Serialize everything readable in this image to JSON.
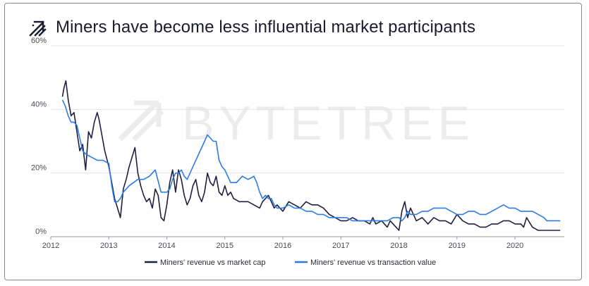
{
  "title": "Miners have become less influential market participants",
  "brand": {
    "icon": "bytetree-arrow-icon",
    "watermark": "BYTETREE"
  },
  "colors": {
    "series_dark": "#1f2040",
    "series_blue": "#2c7be5",
    "grid": "#e3e3e3",
    "text": "#1a1b2f"
  },
  "chart_data": {
    "type": "line",
    "title": "Miners have become less influential market participants",
    "xlabel": "",
    "ylabel": "",
    "xlim": [
      2012.0,
      2020.85
    ],
    "ylim": [
      0,
      60
    ],
    "x_ticks": [
      {
        "value": 2012,
        "label": "2012"
      },
      {
        "value": 2013,
        "label": "2013"
      },
      {
        "value": 2014,
        "label": "2014"
      },
      {
        "value": 2015,
        "label": "2015"
      },
      {
        "value": 2016,
        "label": "2016"
      },
      {
        "value": 2017,
        "label": "2017"
      },
      {
        "value": 2018,
        "label": "2018"
      },
      {
        "value": 2019,
        "label": "2019"
      },
      {
        "value": 2020,
        "label": "2020"
      }
    ],
    "y_ticks": [
      {
        "value": 0,
        "label": "0%"
      },
      {
        "value": 20,
        "label": "20%"
      },
      {
        "value": 40,
        "label": "40%"
      },
      {
        "value": 60,
        "label": "60%"
      }
    ],
    "grid": true,
    "legend_position": "bottom-center",
    "series": [
      {
        "name": "Miners' revenue vs market cap",
        "color": "#1f2040",
        "points": [
          [
            2012.2,
            44
          ],
          [
            2012.23,
            47
          ],
          [
            2012.26,
            49
          ],
          [
            2012.3,
            43
          ],
          [
            2012.35,
            38
          ],
          [
            2012.4,
            39
          ],
          [
            2012.45,
            33
          ],
          [
            2012.5,
            27
          ],
          [
            2012.55,
            29
          ],
          [
            2012.6,
            21
          ],
          [
            2012.65,
            33
          ],
          [
            2012.7,
            31
          ],
          [
            2012.75,
            36
          ],
          [
            2012.8,
            39
          ],
          [
            2012.83,
            37
          ],
          [
            2012.88,
            32
          ],
          [
            2012.93,
            27
          ],
          [
            2013.0,
            22
          ],
          [
            2013.05,
            17
          ],
          [
            2013.1,
            12
          ],
          [
            2013.15,
            9
          ],
          [
            2013.2,
            6
          ],
          [
            2013.25,
            15
          ],
          [
            2013.3,
            18
          ],
          [
            2013.35,
            22
          ],
          [
            2013.4,
            25
          ],
          [
            2013.45,
            28
          ],
          [
            2013.5,
            20
          ],
          [
            2013.55,
            16
          ],
          [
            2013.6,
            13
          ],
          [
            2013.65,
            11
          ],
          [
            2013.7,
            12
          ],
          [
            2013.75,
            9
          ],
          [
            2013.8,
            15
          ],
          [
            2013.85,
            13
          ],
          [
            2013.9,
            6
          ],
          [
            2013.95,
            5
          ],
          [
            2014.0,
            10
          ],
          [
            2014.05,
            17
          ],
          [
            2014.1,
            21
          ],
          [
            2014.15,
            14
          ],
          [
            2014.2,
            21
          ],
          [
            2014.25,
            18
          ],
          [
            2014.3,
            13
          ],
          [
            2014.35,
            10
          ],
          [
            2014.4,
            12
          ],
          [
            2014.45,
            16
          ],
          [
            2014.5,
            18
          ],
          [
            2014.55,
            13
          ],
          [
            2014.6,
            11
          ],
          [
            2014.65,
            14
          ],
          [
            2014.7,
            20
          ],
          [
            2014.75,
            17
          ],
          [
            2014.8,
            16
          ],
          [
            2014.85,
            19
          ],
          [
            2014.9,
            14
          ],
          [
            2014.95,
            13
          ],
          [
            2015.0,
            16
          ],
          [
            2015.05,
            13
          ],
          [
            2015.1,
            14
          ],
          [
            2015.15,
            12
          ],
          [
            2015.25,
            11
          ],
          [
            2015.4,
            11
          ],
          [
            2015.5,
            10
          ],
          [
            2015.6,
            9
          ],
          [
            2015.65,
            11
          ],
          [
            2015.7,
            12
          ],
          [
            2015.75,
            13
          ],
          [
            2015.8,
            11
          ],
          [
            2015.85,
            9
          ],
          [
            2015.9,
            10
          ],
          [
            2015.95,
            9
          ],
          [
            2016.0,
            8
          ],
          [
            2016.1,
            11
          ],
          [
            2016.2,
            10
          ],
          [
            2016.3,
            9
          ],
          [
            2016.4,
            11
          ],
          [
            2016.5,
            10
          ],
          [
            2016.6,
            10
          ],
          [
            2016.7,
            9
          ],
          [
            2016.8,
            7
          ],
          [
            2016.9,
            6
          ],
          [
            2017.0,
            5
          ],
          [
            2017.1,
            5
          ],
          [
            2017.2,
            6
          ],
          [
            2017.3,
            5
          ],
          [
            2017.4,
            5
          ],
          [
            2017.5,
            4
          ],
          [
            2017.55,
            6
          ],
          [
            2017.6,
            4
          ],
          [
            2017.7,
            5
          ],
          [
            2017.8,
            3
          ],
          [
            2017.85,
            5
          ],
          [
            2017.9,
            4
          ],
          [
            2017.95,
            3
          ],
          [
            2018.0,
            2
          ],
          [
            2018.05,
            8
          ],
          [
            2018.1,
            11
          ],
          [
            2018.15,
            6
          ],
          [
            2018.2,
            9
          ],
          [
            2018.3,
            5
          ],
          [
            2018.4,
            6
          ],
          [
            2018.5,
            4
          ],
          [
            2018.6,
            6
          ],
          [
            2018.7,
            5
          ],
          [
            2018.8,
            5
          ],
          [
            2018.9,
            4
          ],
          [
            2019.0,
            7
          ],
          [
            2019.1,
            5
          ],
          [
            2019.2,
            4
          ],
          [
            2019.3,
            4
          ],
          [
            2019.4,
            3
          ],
          [
            2019.5,
            3
          ],
          [
            2019.6,
            4
          ],
          [
            2019.7,
            4
          ],
          [
            2019.8,
            5
          ],
          [
            2019.9,
            5
          ],
          [
            2020.0,
            4
          ],
          [
            2020.1,
            4
          ],
          [
            2020.15,
            3
          ],
          [
            2020.2,
            6
          ],
          [
            2020.3,
            3
          ],
          [
            2020.4,
            2
          ],
          [
            2020.5,
            2
          ],
          [
            2020.6,
            2
          ],
          [
            2020.7,
            2
          ],
          [
            2020.78,
            2
          ]
        ]
      },
      {
        "name": "Miners' revenue vs transaction value",
        "color": "#2c7be5",
        "points": [
          [
            2012.2,
            43
          ],
          [
            2012.25,
            41
          ],
          [
            2012.3,
            38
          ],
          [
            2012.35,
            36
          ],
          [
            2012.4,
            36
          ],
          [
            2012.45,
            35
          ],
          [
            2012.5,
            31
          ],
          [
            2012.55,
            27
          ],
          [
            2012.6,
            26
          ],
          [
            2012.7,
            25
          ],
          [
            2012.8,
            24
          ],
          [
            2012.9,
            24
          ],
          [
            2013.0,
            23
          ],
          [
            2013.05,
            16
          ],
          [
            2013.1,
            11
          ],
          [
            2013.15,
            11
          ],
          [
            2013.2,
            12
          ],
          [
            2013.25,
            14
          ],
          [
            2013.35,
            16
          ],
          [
            2013.5,
            18
          ],
          [
            2013.6,
            18
          ],
          [
            2013.7,
            19
          ],
          [
            2013.8,
            21
          ],
          [
            2013.9,
            14
          ],
          [
            2014.0,
            14
          ],
          [
            2014.05,
            15
          ],
          [
            2014.1,
            18
          ],
          [
            2014.15,
            20
          ],
          [
            2014.2,
            20
          ],
          [
            2014.25,
            21
          ],
          [
            2014.3,
            19
          ],
          [
            2014.35,
            18
          ],
          [
            2014.4,
            20
          ],
          [
            2014.5,
            24
          ],
          [
            2014.55,
            26
          ],
          [
            2014.6,
            28
          ],
          [
            2014.65,
            30
          ],
          [
            2014.7,
            32
          ],
          [
            2014.75,
            31
          ],
          [
            2014.8,
            30
          ],
          [
            2014.85,
            30
          ],
          [
            2014.9,
            24
          ],
          [
            2014.95,
            22
          ],
          [
            2015.0,
            21
          ],
          [
            2015.1,
            17
          ],
          [
            2015.2,
            17
          ],
          [
            2015.3,
            19
          ],
          [
            2015.4,
            18
          ],
          [
            2015.5,
            19
          ],
          [
            2015.55,
            17
          ],
          [
            2015.6,
            14
          ],
          [
            2015.65,
            12
          ],
          [
            2015.7,
            13
          ],
          [
            2015.75,
            12
          ],
          [
            2015.8,
            12
          ],
          [
            2015.85,
            10
          ],
          [
            2015.9,
            9
          ],
          [
            2016.0,
            9
          ],
          [
            2016.1,
            10
          ],
          [
            2016.2,
            9
          ],
          [
            2016.3,
            9
          ],
          [
            2016.4,
            8
          ],
          [
            2016.5,
            8
          ],
          [
            2016.6,
            7
          ],
          [
            2016.7,
            7
          ],
          [
            2016.8,
            6
          ],
          [
            2016.9,
            6
          ],
          [
            2017.0,
            6
          ],
          [
            2017.1,
            6
          ],
          [
            2017.2,
            5
          ],
          [
            2017.3,
            5
          ],
          [
            2017.4,
            5
          ],
          [
            2017.5,
            5
          ],
          [
            2017.6,
            5
          ],
          [
            2017.7,
            5
          ],
          [
            2017.8,
            5
          ],
          [
            2017.9,
            6
          ],
          [
            2018.0,
            6
          ],
          [
            2018.05,
            5
          ],
          [
            2018.1,
            6
          ],
          [
            2018.15,
            8
          ],
          [
            2018.2,
            7
          ],
          [
            2018.3,
            7
          ],
          [
            2018.4,
            8
          ],
          [
            2018.5,
            8
          ],
          [
            2018.6,
            9
          ],
          [
            2018.7,
            9
          ],
          [
            2018.8,
            9
          ],
          [
            2018.9,
            8
          ],
          [
            2019.0,
            7
          ],
          [
            2019.1,
            7
          ],
          [
            2019.2,
            8
          ],
          [
            2019.3,
            8
          ],
          [
            2019.4,
            7
          ],
          [
            2019.5,
            7
          ],
          [
            2019.6,
            8
          ],
          [
            2019.7,
            9
          ],
          [
            2019.8,
            10
          ],
          [
            2019.9,
            9
          ],
          [
            2020.0,
            9
          ],
          [
            2020.1,
            8
          ],
          [
            2020.2,
            8
          ],
          [
            2020.3,
            8
          ],
          [
            2020.4,
            7
          ],
          [
            2020.5,
            6
          ],
          [
            2020.55,
            5
          ],
          [
            2020.6,
            5
          ],
          [
            2020.7,
            5
          ],
          [
            2020.78,
            5
          ]
        ]
      }
    ]
  }
}
